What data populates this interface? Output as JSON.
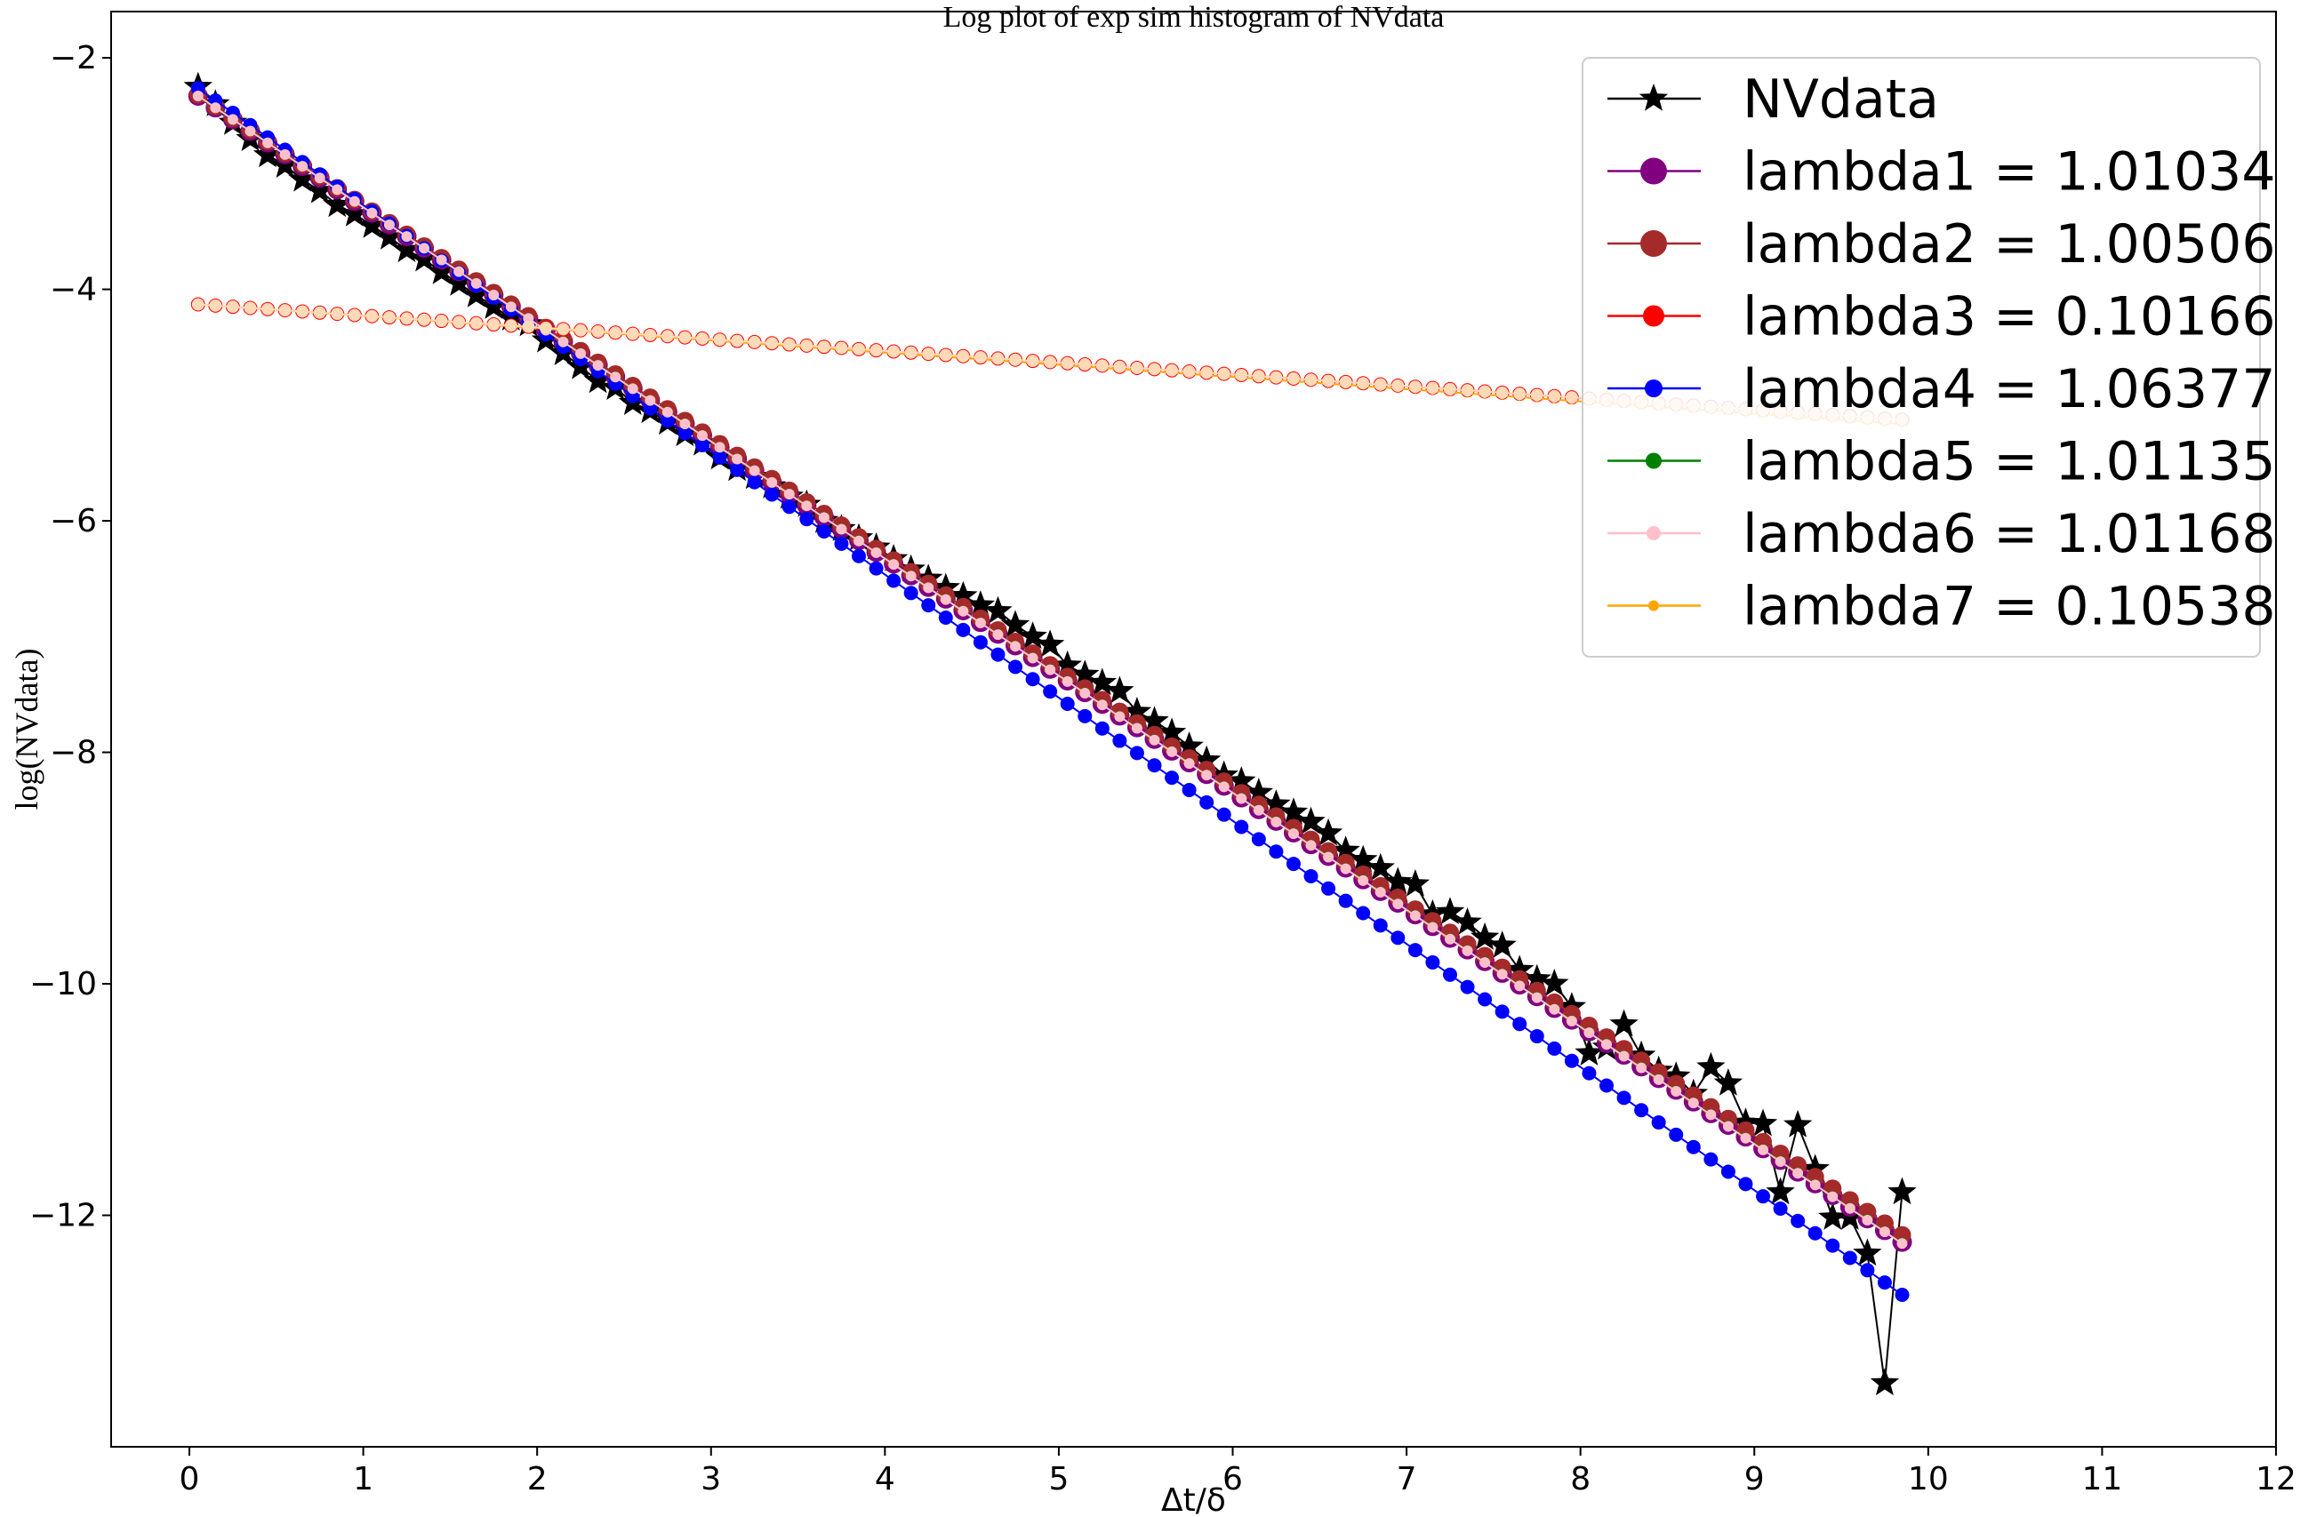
{
  "chart_data": {
    "type": "line",
    "title": "Log plot of exp sim histogram of NVdata",
    "xlabel": "Δt/δ",
    "ylabel": "log(NVdata)",
    "xlim": [
      -0.45,
      12.0
    ],
    "ylim": [
      -14.0,
      -1.6
    ],
    "xticks": [
      0,
      1,
      2,
      3,
      4,
      5,
      6,
      7,
      8,
      9,
      10,
      11,
      12
    ],
    "yticks": [
      -12,
      -10,
      -8,
      -6,
      -4,
      -2
    ],
    "grid": false,
    "legend_position": "top-right",
    "series": [
      {
        "name": "NVdata",
        "color": "#000000",
        "marker": "star",
        "marker_size": 17,
        "x": [
          0.05,
          0.15,
          0.25,
          0.35,
          0.45,
          0.55,
          0.65,
          0.75,
          0.85,
          0.95,
          1.05,
          1.15,
          1.25,
          1.35,
          1.45,
          1.55,
          1.65,
          1.75,
          1.85,
          1.95,
          2.05,
          2.15,
          2.25,
          2.35,
          2.45,
          2.55,
          2.65,
          2.75,
          2.85,
          2.95,
          3.05,
          3.15,
          3.25,
          3.35,
          3.45,
          3.55,
          3.65,
          3.75,
          3.85,
          3.95,
          4.05,
          4.15,
          4.25,
          4.35,
          4.45,
          4.55,
          4.65,
          4.75,
          4.85,
          4.95,
          5.05,
          5.15,
          5.25,
          5.35,
          5.45,
          5.55,
          5.65,
          5.75,
          5.85,
          5.95,
          6.05,
          6.15,
          6.25,
          6.35,
          6.45,
          6.55,
          6.65,
          6.75,
          6.85,
          6.95,
          7.05,
          7.15,
          7.25,
          7.35,
          7.45,
          7.55,
          7.65,
          7.75,
          7.85,
          7.95,
          8.05,
          8.15,
          8.25,
          8.35,
          8.45,
          8.55,
          8.65,
          8.75,
          8.85,
          8.95,
          9.05,
          9.15,
          9.25,
          9.35,
          9.45,
          9.55,
          9.65,
          9.75,
          9.85
        ],
        "y": [
          -2.25,
          -2.4,
          -2.56,
          -2.7,
          -2.84,
          -2.93,
          -3.05,
          -3.15,
          -3.27,
          -3.35,
          -3.45,
          -3.55,
          -3.66,
          -3.74,
          -3.85,
          -3.95,
          -4.05,
          -4.15,
          -4.25,
          -4.3,
          -4.44,
          -4.55,
          -4.67,
          -4.79,
          -4.85,
          -4.98,
          -5.05,
          -5.15,
          -5.25,
          -5.33,
          -5.45,
          -5.55,
          -5.62,
          -5.7,
          -5.79,
          -5.86,
          -6.0,
          -6.07,
          -6.15,
          -6.23,
          -6.33,
          -6.42,
          -6.5,
          -6.58,
          -6.65,
          -6.73,
          -6.78,
          -6.9,
          -7.0,
          -7.07,
          -7.25,
          -7.33,
          -7.4,
          -7.47,
          -7.65,
          -7.73,
          -7.83,
          -7.95,
          -8.07,
          -8.2,
          -8.25,
          -8.35,
          -8.45,
          -8.52,
          -8.6,
          -8.7,
          -8.85,
          -8.93,
          -9.0,
          -9.12,
          -9.14,
          -9.4,
          -9.38,
          -9.47,
          -9.6,
          -9.67,
          -9.88,
          -9.96,
          -10.0,
          -10.2,
          -10.6,
          -10.55,
          -10.35,
          -10.62,
          -10.75,
          -10.8,
          -10.95,
          -10.72,
          -10.86,
          -11.2,
          -11.21,
          -11.8,
          -11.22,
          -11.6,
          -12.02,
          -12.02,
          -12.33,
          -13.45,
          -11.8
        ]
      },
      {
        "name": "lambda1 = 1.01034",
        "color": "#800080",
        "marker": "circle",
        "marker_size": 11,
        "x0": 0.05,
        "dx": 0.1,
        "n": 99,
        "intercept": -2.279,
        "slope": -1.01034
      },
      {
        "name": "lambda2 = 1.00506",
        "color": "#a52a2a",
        "marker": "circle",
        "marker_size": 10,
        "x0": 0.05,
        "dx": 0.1,
        "n": 99,
        "intercept": -2.27,
        "slope": -1.00506
      },
      {
        "name": "lambda3 = 0.10166",
        "color": "#ff0000",
        "marker": "circle",
        "marker_size": 8,
        "x0": 0.05,
        "dx": 0.1,
        "n": 99,
        "intercept": -4.125,
        "slope": -0.10166
      },
      {
        "name": "lambda4 = 1.06377",
        "color": "#0000ff",
        "marker": "circle",
        "marker_size": 8,
        "x0": 0.05,
        "dx": 0.1,
        "n": 99,
        "intercept": -2.209,
        "slope": -1.06377
      },
      {
        "name": "lambda5 = 1.01135",
        "color": "#008000",
        "marker": "circle",
        "marker_size": 6,
        "x0": 0.05,
        "dx": 0.1,
        "n": 99,
        "intercept": -2.279,
        "slope": -1.01135
      },
      {
        "name": "lambda6 = 1.01168",
        "color": "#ffc0cb",
        "marker": "circle",
        "marker_size": 6,
        "x0": 0.05,
        "dx": 0.1,
        "n": 99,
        "intercept": -2.279,
        "slope": -1.01168
      },
      {
        "name": "lambda7 = 0.10538",
        "color": "#ffa500",
        "marker": "circle",
        "marker_size": 4,
        "x0": 0.05,
        "dx": 0.1,
        "n": 99,
        "intercept": -4.125,
        "slope": -0.10538
      }
    ],
    "overlay_series": [
      {
        "name": "",
        "color": "#ffdab9",
        "marker": "circle",
        "marker_size": 7,
        "x0": 0.05,
        "dx": 0.1,
        "n": 99,
        "intercept": -4.125,
        "slope": -0.10166
      }
    ]
  }
}
